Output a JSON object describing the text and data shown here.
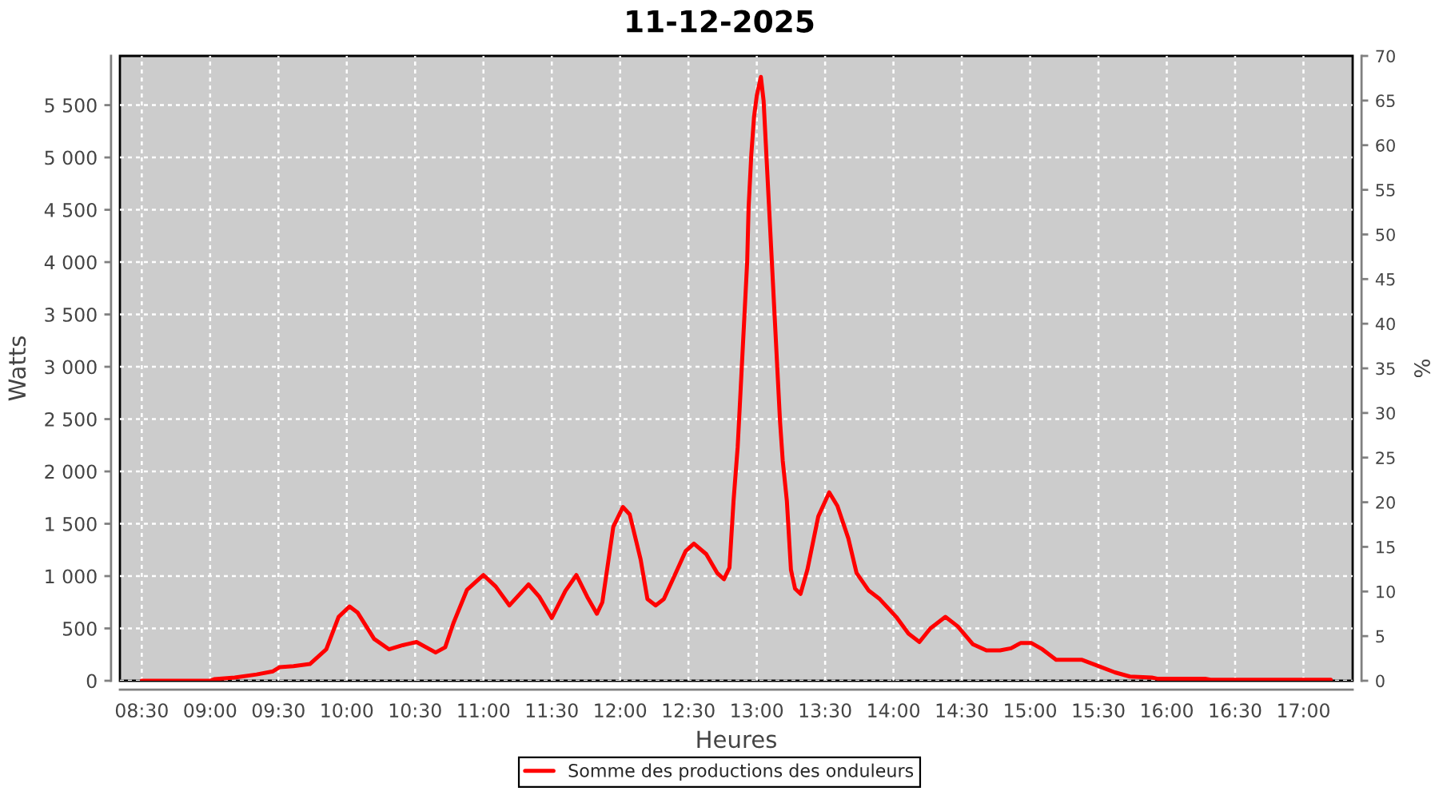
{
  "chart_data": {
    "type": "line",
    "title": "11-12-2025",
    "xlabel": "Heures",
    "ylabel": "Watts",
    "y2label": "%",
    "x": [
      8.5,
      9.0,
      9.03,
      9.18,
      9.34,
      9.46,
      9.51,
      9.61,
      9.73,
      9.85,
      9.94,
      10.02,
      10.08,
      10.2,
      10.31,
      10.41,
      10.51,
      10.65,
      10.72,
      10.78,
      10.88,
      11.0,
      11.09,
      11.19,
      11.33,
      11.41,
      11.5,
      11.6,
      11.68,
      11.76,
      11.83,
      11.87,
      11.95,
      12.02,
      12.07,
      12.15,
      12.2,
      12.26,
      12.32,
      12.4,
      12.48,
      12.54,
      12.63,
      12.71,
      12.76,
      12.8,
      12.83,
      12.86,
      12.87,
      12.89,
      12.91,
      12.93,
      12.94,
      12.96,
      12.98,
      13.0,
      13.03,
      13.05,
      13.07,
      13.09,
      13.11,
      13.13,
      13.15,
      13.17,
      13.19,
      13.22,
      13.25,
      13.28,
      13.32,
      13.37,
      13.45,
      13.53,
      13.59,
      13.67,
      13.73,
      13.82,
      13.9,
      14.02,
      14.11,
      14.19,
      14.27,
      14.38,
      14.47,
      14.58,
      14.68,
      14.78,
      14.86,
      14.93,
      15.01,
      15.09,
      15.19,
      15.38,
      15.5,
      15.62,
      15.73,
      15.89,
      15.93,
      16.28,
      16.32,
      17.2
    ],
    "series": [
      {
        "name": "Somme des productions des onduleurs",
        "color": "#ff0000",
        "values": [
          0,
          0,
          15,
          30,
          60,
          90,
          130,
          140,
          160,
          300,
          610,
          710,
          650,
          400,
          300,
          340,
          370,
          270,
          320,
          550,
          870,
          1010,
          900,
          720,
          920,
          800,
          600,
          860,
          1010,
          800,
          640,
          750,
          1470,
          1660,
          1590,
          1160,
          780,
          720,
          780,
          1010,
          1240,
          1310,
          1210,
          1030,
          970,
          1080,
          1720,
          2230,
          2480,
          2990,
          3500,
          4010,
          4520,
          5030,
          5390,
          5590,
          5770,
          5540,
          5030,
          4520,
          4010,
          3500,
          2990,
          2480,
          2100,
          1720,
          1060,
          880,
          830,
          1060,
          1570,
          1800,
          1670,
          1360,
          1030,
          860,
          780,
          610,
          450,
          370,
          500,
          610,
          520,
          350,
          290,
          290,
          310,
          360,
          360,
          300,
          200,
          200,
          140,
          80,
          40,
          30,
          20,
          20,
          10,
          10
        ]
      }
    ],
    "xlim": [
      8.34,
      17.36
    ],
    "xticks": [
      {
        "value": 8.5,
        "label": "08:30"
      },
      {
        "value": 9.0,
        "label": "09:00"
      },
      {
        "value": 9.5,
        "label": "09:30"
      },
      {
        "value": 10.0,
        "label": "10:00"
      },
      {
        "value": 10.5,
        "label": "10:30"
      },
      {
        "value": 11.0,
        "label": "11:00"
      },
      {
        "value": 11.5,
        "label": "11:30"
      },
      {
        "value": 12.0,
        "label": "12:00"
      },
      {
        "value": 12.5,
        "label": "12:30"
      },
      {
        "value": 13.0,
        "label": "13:00"
      },
      {
        "value": 13.5,
        "label": "13:30"
      },
      {
        "value": 14.0,
        "label": "14:00"
      },
      {
        "value": 14.5,
        "label": "14:30"
      },
      {
        "value": 15.0,
        "label": "15:00"
      },
      {
        "value": 15.5,
        "label": "15:30"
      },
      {
        "value": 16.0,
        "label": "16:00"
      },
      {
        "value": 16.5,
        "label": "16:30"
      },
      {
        "value": 17.0,
        "label": "17:00"
      }
    ],
    "ylim": [
      0,
      5970
    ],
    "yticks": [
      0,
      500,
      {
        "value": 1000,
        "label": "1 000"
      },
      {
        "value": 1500,
        "label": "1 500"
      },
      {
        "value": 2000,
        "label": "2 000"
      },
      {
        "value": 2500,
        "label": "2 500"
      },
      {
        "value": 3000,
        "label": "3 000"
      },
      {
        "value": 3500,
        "label": "3 500"
      },
      {
        "value": 4000,
        "label": "4 000"
      },
      {
        "value": 4500,
        "label": "4 500"
      },
      {
        "value": 5000,
        "label": "5 000"
      },
      {
        "value": 5500,
        "label": "5 500"
      }
    ],
    "y2lim": [
      0,
      70
    ],
    "y2ticks": [
      0,
      5,
      10,
      15,
      20,
      25,
      30,
      35,
      40,
      45,
      50,
      55,
      60,
      65,
      70
    ],
    "grid": true,
    "legend": "bottom"
  }
}
